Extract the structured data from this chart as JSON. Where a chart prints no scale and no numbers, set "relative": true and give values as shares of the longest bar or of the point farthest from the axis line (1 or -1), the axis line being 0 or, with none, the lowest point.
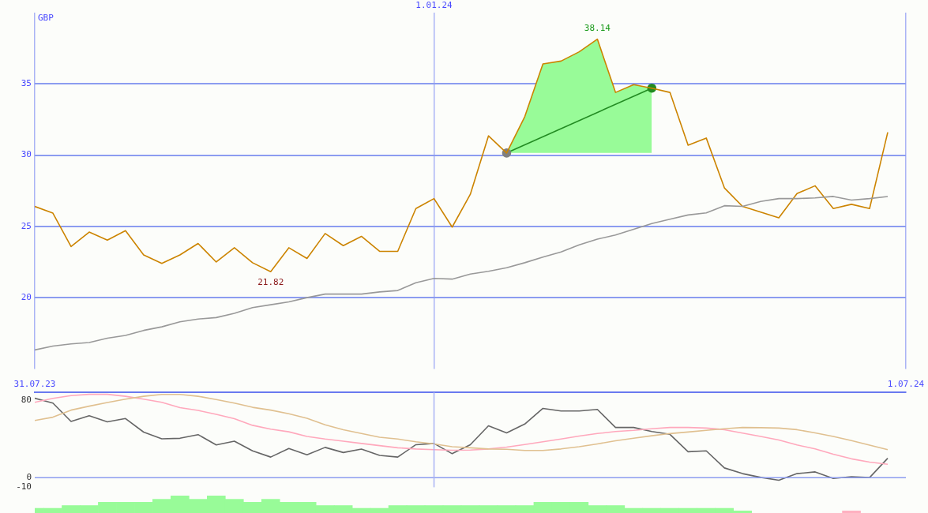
{
  "chart_data": [
    {
      "type": "line",
      "ylabel": "GBP",
      "x": [
        "2023-07-31",
        "2023-08-07",
        "2023-08-14",
        "2023-08-21",
        "2023-08-28",
        "2023-09-04",
        "2023-09-11",
        "2023-09-18",
        "2023-09-25",
        "2023-10-02",
        "2023-10-09",
        "2023-10-16",
        "2023-10-23",
        "2023-10-30",
        "2023-11-06",
        "2023-11-13",
        "2023-11-20",
        "2023-11-27",
        "2023-12-04",
        "2023-12-11",
        "2023-12-18",
        "2023-12-25",
        "2024-01-01",
        "2024-01-08",
        "2024-01-15",
        "2024-01-22",
        "2024-01-29",
        "2024-02-05",
        "2024-02-12",
        "2024-02-19",
        "2024-02-26",
        "2024-03-04",
        "2024-03-11",
        "2024-03-18",
        "2024-03-25",
        "2024-04-01",
        "2024-04-08",
        "2024-04-15",
        "2024-04-22",
        "2024-04-29",
        "2024-05-06",
        "2024-05-13",
        "2024-05-20",
        "2024-05-27",
        "2024-06-03",
        "2024-06-10",
        "2024-06-17",
        "2024-06-24"
      ],
      "xlim": [
        "2023-07-31",
        "2024-07-01"
      ],
      "xticks": [
        {
          "value": "2023-07-31",
          "label": null
        },
        {
          "value": "2024-01-01",
          "label": null
        },
        {
          "value": "2024-07-01",
          "label": null
        }
      ],
      "tick_labels": "y",
      "ylim": [
        15,
        40
      ],
      "yticks": [
        20,
        25,
        30,
        35
      ],
      "grid": true,
      "legend": false,
      "marker": "none",
      "annotations": [
        {
          "text": "1.01.24",
          "x": "2024-01-01"
        },
        {
          "text": "38.14",
          "x": "2024-03-04",
          "y": 38.14
        },
        {
          "text": "21.82",
          "x": "2023-10-30",
          "y": 21.82
        }
      ],
      "series": [
        {
          "color": "#999999",
          "values": [
            16.33,
            16.6,
            16.75,
            16.85,
            17.15,
            17.35,
            17.7,
            17.95,
            18.3,
            18.5,
            18.6,
            18.9,
            19.3,
            19.5,
            19.7,
            20.0,
            20.25,
            20.25,
            20.25,
            20.4,
            20.5,
            21.05,
            21.35,
            21.3,
            21.65,
            21.85,
            22.1,
            22.45,
            22.85,
            23.2,
            23.7,
            24.1,
            24.4,
            24.8,
            25.2,
            25.5,
            25.8,
            25.95,
            26.45,
            26.4,
            26.75,
            26.95,
            26.95,
            27.0,
            27.1,
            26.85,
            26.95,
            27.1
          ]
        },
        {
          "color": "#cc8400",
          "values": [
            26.4,
            25.93,
            23.58,
            24.6,
            24.04,
            24.7,
            23.0,
            22.4,
            23.0,
            23.8,
            22.5,
            23.5,
            22.45,
            21.82,
            23.5,
            22.75,
            24.5,
            23.65,
            24.3,
            23.25,
            23.25,
            26.25,
            26.95,
            24.95,
            27.25,
            31.35,
            30.15,
            32.7,
            36.4,
            36.6,
            37.25,
            38.14,
            34.4,
            34.95,
            34.7,
            34.4,
            30.7,
            31.2,
            27.7,
            26.4,
            26.0,
            25.6,
            27.3,
            27.85,
            26.25,
            26.55,
            26.25,
            31.6
          ],
          "lower": [
            null,
            null,
            null,
            null,
            null,
            null,
            null,
            null,
            null,
            null,
            null,
            null,
            null,
            null,
            null,
            null,
            null,
            null,
            null,
            null,
            null,
            null,
            null,
            null,
            null,
            null,
            30.15,
            30.15,
            30.15,
            30.15,
            30.15,
            30.15,
            30.15,
            30.15,
            30.15,
            null,
            null,
            null,
            null,
            null,
            null,
            null,
            null,
            null,
            null,
            null,
            null,
            null
          ],
          "upper": [
            null,
            null,
            null,
            null,
            null,
            null,
            null,
            null,
            null,
            null,
            null,
            null,
            null,
            null,
            null,
            null,
            null,
            null,
            null,
            null,
            null,
            null,
            null,
            null,
            null,
            null,
            30.15,
            32.7,
            36.4,
            36.6,
            37.25,
            38.14,
            34.4,
            34.95,
            34.7,
            null,
            null,
            null,
            null,
            null,
            null,
            null,
            null,
            null,
            null,
            null,
            null,
            null
          ]
        },
        {
          "x": [
            "2024-01-29",
            "2024-03-25"
          ],
          "values": [
            30.15,
            34.7
          ],
          "color": "#228b22",
          "marker": "circle",
          "colors": [
            "#808080",
            "#228b22"
          ]
        }
      ]
    },
    {
      "type": "line",
      "x": [
        "2023-07-31",
        "2023-08-07",
        "2023-08-14",
        "2023-08-21",
        "2023-08-28",
        "2023-09-04",
        "2023-09-11",
        "2023-09-18",
        "2023-09-25",
        "2023-10-02",
        "2023-10-09",
        "2023-10-16",
        "2023-10-23",
        "2023-10-30",
        "2023-11-06",
        "2023-11-13",
        "2023-11-20",
        "2023-11-27",
        "2023-12-04",
        "2023-12-11",
        "2023-12-18",
        "2023-12-25",
        "2024-01-01",
        "2024-01-08",
        "2024-01-15",
        "2024-01-22",
        "2024-01-29",
        "2024-02-05",
        "2024-02-12",
        "2024-02-19",
        "2024-02-26",
        "2024-03-04",
        "2024-03-11",
        "2024-03-18",
        "2024-03-25",
        "2024-04-01",
        "2024-04-08",
        "2024-04-15",
        "2024-04-22",
        "2024-04-29",
        "2024-05-06",
        "2024-05-13",
        "2024-05-20",
        "2024-05-27",
        "2024-06-03",
        "2024-06-10",
        "2024-06-17",
        "2024-06-24"
      ],
      "xlim": [
        "2023-07-31",
        "2024-07-01"
      ],
      "xticks": [
        {
          "value": "2023-07-31",
          "label": "31.07.23"
        },
        {
          "value": "2024-07-01",
          "label": "1.07.24"
        }
      ],
      "ylim": [
        -10,
        88
      ],
      "yticks": [
        80,
        0,
        -10
      ],
      "legend": false,
      "marker": "none",
      "ref_lines": [
        {
          "axis": "y",
          "value": 0,
          "color": "#8c9cf0"
        },
        {
          "axis": "x",
          "value": "2024-01-01",
          "color": "#aab4f5"
        }
      ],
      "series": [
        {
          "color": "#e0c090",
          "values": [
            59,
            62.4,
            69.7,
            73.8,
            77.6,
            81,
            84,
            85.9,
            85.9,
            84,
            80.6,
            77,
            72.6,
            69.7,
            65.9,
            61.3,
            54.5,
            49.5,
            45.5,
            41.7,
            39.8,
            37,
            34.8,
            31.9,
            30.8,
            29.6,
            29.2,
            28,
            28,
            29.6,
            31.9,
            34.8,
            38,
            40.7,
            43.2,
            45.5,
            47.1,
            48.8,
            50.5,
            51.8,
            51.6,
            51.2,
            49.5,
            46.2,
            42.5,
            38.2,
            33.5,
            28.9
          ]
        },
        {
          "color": "#ffa8bc",
          "values": [
            77.8,
            81.8,
            84.7,
            86,
            86,
            84,
            81,
            77.8,
            72.3,
            69.4,
            65.3,
            60.9,
            54,
            50,
            47.3,
            42.5,
            39.8,
            37.6,
            35.3,
            33,
            30.8,
            29.6,
            28.9,
            28.2,
            28.5,
            29.6,
            31.5,
            34.1,
            37,
            39.8,
            42.9,
            45.5,
            47.6,
            48.8,
            50.5,
            51.8,
            51.8,
            51.2,
            49.5,
            45.9,
            42.5,
            38.8,
            33.7,
            29.6,
            24.1,
            19.4,
            16,
            13.8
          ]
        },
        {
          "color": "#666666",
          "values": [
            82,
            77,
            58,
            64,
            57.6,
            61,
            47,
            40,
            40.6,
            44.4,
            33.7,
            37.6,
            27.6,
            21.2,
            30,
            23.5,
            31.2,
            25.9,
            29.4,
            23,
            21.2,
            34,
            35.3,
            24.7,
            34,
            53.5,
            46.2,
            55.3,
            71.5,
            68.8,
            68.8,
            70.4,
            51.8,
            51.8,
            47.6,
            44.7,
            26.7,
            27.6,
            10,
            4.1,
            0.2,
            -2.7,
            4.1,
            5.9,
            -0.9,
            0.9,
            0,
            20
          ]
        }
      ]
    },
    {
      "type": "bar",
      "relative": true,
      "x": [
        "2023-07-31",
        "2023-08-07",
        "2023-08-14",
        "2023-08-21",
        "2023-08-28",
        "2023-09-04",
        "2023-09-11",
        "2023-09-18",
        "2023-09-25",
        "2023-10-02",
        "2023-10-09",
        "2023-10-16",
        "2023-10-23",
        "2023-10-30",
        "2023-11-06",
        "2023-11-13",
        "2023-11-20",
        "2023-11-27",
        "2023-12-04",
        "2023-12-11",
        "2023-12-18",
        "2023-12-25",
        "2024-01-01",
        "2024-01-08",
        "2024-01-15",
        "2024-01-22",
        "2024-01-29",
        "2024-02-05",
        "2024-02-12",
        "2024-02-19",
        "2024-02-26",
        "2024-03-04",
        "2024-03-11",
        "2024-03-18",
        "2024-03-25",
        "2024-04-01",
        "2024-04-08",
        "2024-04-15",
        "2024-04-22",
        "2024-04-29",
        "2024-05-06",
        "2024-05-13",
        "2024-05-20",
        "2024-05-27",
        "2024-06-03",
        "2024-06-10"
      ],
      "xlim": [
        "2023-07-31",
        "2024-07-01"
      ],
      "tick_labels": false,
      "legend": false,
      "series": [
        {
          "values": [
            0.27,
            0.27,
            0.43,
            0.43,
            0.62,
            0.62,
            0.62,
            0.79,
            1,
            0.79,
            1,
            0.79,
            0.62,
            0.79,
            0.62,
            0.62,
            0.43,
            0.43,
            0.27,
            0.27,
            0.43,
            0.43,
            0.43,
            0.43,
            0.43,
            0.43,
            0.43,
            0.43,
            0.62,
            0.62,
            0.62,
            0.43,
            0.43,
            0.27,
            0.27,
            0.27,
            0.27,
            0.27,
            0.27,
            0.12,
            null,
            null,
            null,
            null,
            null,
            0.12
          ],
          "colors": [
            "#98fb98",
            "#98fb98",
            "#98fb98",
            "#98fb98",
            "#98fb98",
            "#98fb98",
            "#98fb98",
            "#98fb98",
            "#98fb98",
            "#98fb98",
            "#98fb98",
            "#98fb98",
            "#98fb98",
            "#98fb98",
            "#98fb98",
            "#98fb98",
            "#98fb98",
            "#98fb98",
            "#98fb98",
            "#98fb98",
            "#98fb98",
            "#98fb98",
            "#98fb98",
            "#98fb98",
            "#98fb98",
            "#98fb98",
            "#98fb98",
            "#98fb98",
            "#98fb98",
            "#98fb98",
            "#98fb98",
            "#98fb98",
            "#98fb98",
            "#98fb98",
            "#98fb98",
            "#98fb98",
            "#98fb98",
            "#98fb98",
            "#98fb98",
            "#98fb98",
            "#98fb98",
            "#98fb98",
            "#98fb98",
            "#98fb98",
            "#98fb98",
            "#ffb0c0"
          ]
        }
      ]
    }
  ]
}
